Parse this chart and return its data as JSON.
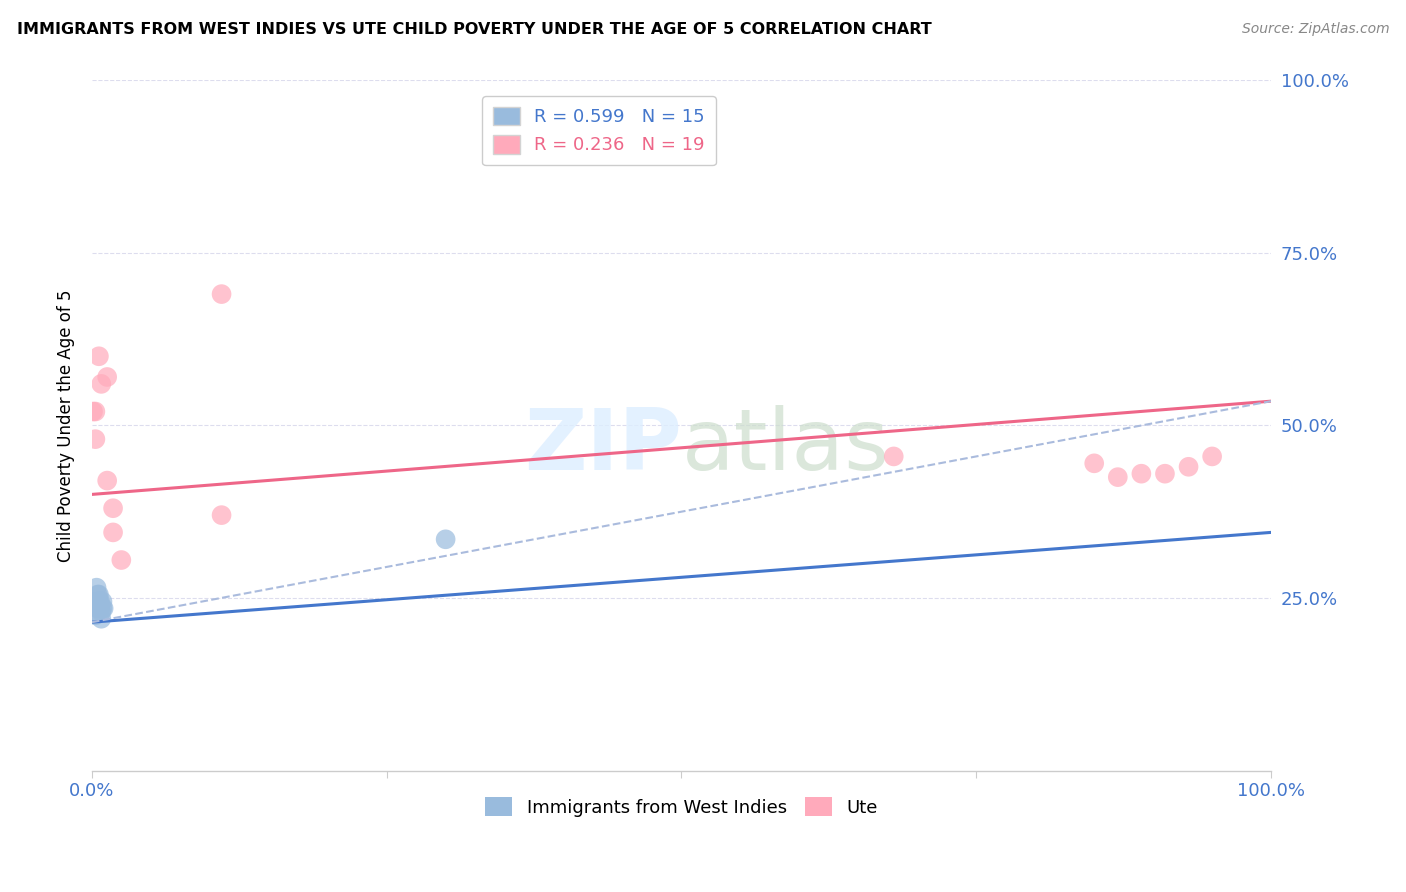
{
  "title": "IMMIGRANTS FROM WEST INDIES VS UTE CHILD POVERTY UNDER THE AGE OF 5 CORRELATION CHART",
  "source": "Source: ZipAtlas.com",
  "ylabel": "Child Poverty Under the Age of 5",
  "xlim": [
    0.0,
    1.0
  ],
  "ylim": [
    0.0,
    1.0
  ],
  "blue_scatter_x": [
    0.003,
    0.004,
    0.004,
    0.005,
    0.005,
    0.006,
    0.006,
    0.007,
    0.007,
    0.008,
    0.008,
    0.009,
    0.009,
    0.01,
    0.3
  ],
  "blue_scatter_y": [
    0.225,
    0.245,
    0.265,
    0.235,
    0.255,
    0.245,
    0.255,
    0.235,
    0.245,
    0.22,
    0.23,
    0.235,
    0.245,
    0.235,
    0.335
  ],
  "pink_scatter_x": [
    0.001,
    0.003,
    0.003,
    0.006,
    0.008,
    0.013,
    0.013,
    0.018,
    0.018,
    0.025,
    0.11,
    0.11,
    0.68,
    0.85,
    0.87,
    0.89,
    0.91,
    0.93,
    0.95
  ],
  "pink_scatter_y": [
    0.52,
    0.52,
    0.48,
    0.6,
    0.56,
    0.57,
    0.42,
    0.38,
    0.345,
    0.305,
    0.69,
    0.37,
    0.455,
    0.445,
    0.425,
    0.43,
    0.43,
    0.44,
    0.455
  ],
  "blue_line_x": [
    0.0,
    1.0
  ],
  "blue_line_y": [
    0.215,
    0.345
  ],
  "pink_line_x": [
    0.0,
    1.0
  ],
  "pink_line_y": [
    0.4,
    0.535
  ],
  "dashed_line_x": [
    0.0,
    1.0
  ],
  "dashed_line_y": [
    0.215,
    0.535
  ],
  "legend_blue_r": "0.599",
  "legend_blue_n": "15",
  "legend_pink_r": "0.236",
  "legend_pink_n": "19",
  "blue_color": "#99BBDD",
  "pink_color": "#FFAABB",
  "blue_line_color": "#4477CC",
  "pink_line_color": "#EE6688",
  "dashed_line_color": "#AABBDD",
  "watermark_zip": "ZIP",
  "watermark_atlas": "atlas",
  "legend_x_label": [
    "Immigrants from West Indies",
    "Ute"
  ],
  "scatter_size": 200,
  "grid_color": "#DDDDEE"
}
